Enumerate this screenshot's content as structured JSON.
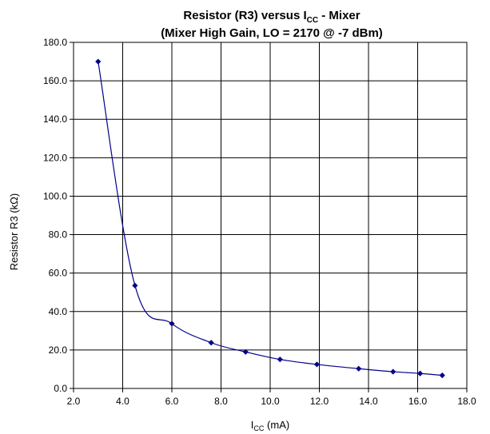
{
  "chart_data": {
    "type": "line",
    "title_line1": "Resistor (R3) versus I",
    "title_line1_sub": "CC",
    "title_line1_tail": " - Mixer",
    "title_line2": "(Mixer High Gain, LO = 2170 @ -7 dBm)",
    "xlabel_main": "I",
    "xlabel_sub": "CC",
    "xlabel_tail": " (mA)",
    "ylabel": "Resistor R3 (kΩ)",
    "xlim": [
      2.0,
      18.0
    ],
    "ylim": [
      0.0,
      180.0
    ],
    "xticks": [
      2.0,
      4.0,
      6.0,
      8.0,
      10.0,
      12.0,
      14.0,
      16.0,
      18.0
    ],
    "xtick_labels": [
      "2.0",
      "4.0",
      "6.0",
      "8.0",
      "10.0",
      "12.0",
      "14.0",
      "16.0",
      "18.0"
    ],
    "yticks": [
      0,
      20,
      40,
      60,
      80,
      100,
      120,
      140,
      160,
      180
    ],
    "ytick_labels": [
      "0.0",
      "20.0",
      "40.0",
      "60.0",
      "80.0",
      "100.0",
      "120.0",
      "140.0",
      "160.0",
      "180.0"
    ],
    "grid": true,
    "series": [
      {
        "x": [
          3.0,
          4.5,
          6.0,
          7.6,
          9.0,
          10.4,
          11.9,
          13.6,
          15.0,
          16.1,
          17.0
        ],
        "y": [
          170.0,
          53.5,
          33.7,
          23.8,
          19.0,
          15.1,
          12.5,
          10.3,
          8.7,
          7.8,
          6.8
        ],
        "color": "#00008B"
      }
    ]
  }
}
